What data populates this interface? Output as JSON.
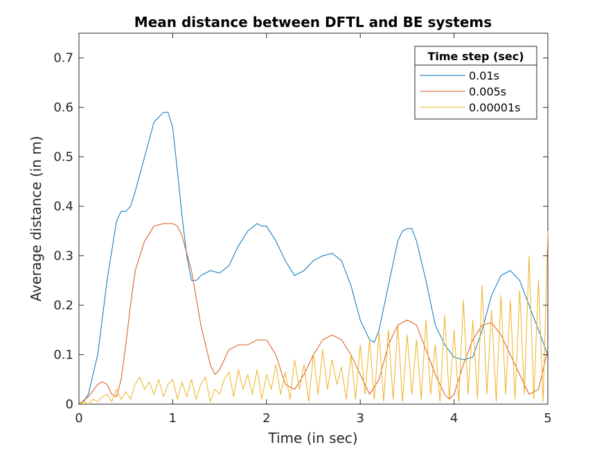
{
  "chart_data": {
    "type": "line",
    "title": "Mean distance between DFTL and BE systems",
    "xlabel": "Time (in sec)",
    "ylabel": "Average distance (in m)",
    "xlim": [
      0,
      5
    ],
    "ylim": [
      0,
      0.75
    ],
    "xticks": [
      0,
      1,
      2,
      3,
      4,
      5
    ],
    "yticks": [
      0,
      0.1,
      0.2,
      0.3,
      0.4,
      0.5,
      0.6,
      0.7
    ],
    "grid": false,
    "legend": {
      "title": "Time step (sec)",
      "placement": "top-right"
    },
    "series": [
      {
        "name": "0.01s",
        "color": "#0072BD",
        "x": [
          0,
          0.05,
          0.1,
          0.2,
          0.3,
          0.4,
          0.45,
          0.5,
          0.55,
          0.6,
          0.7,
          0.8,
          0.85,
          0.9,
          0.95,
          1.0,
          1.05,
          1.1,
          1.15,
          1.2,
          1.25,
          1.3,
          1.4,
          1.5,
          1.6,
          1.7,
          1.8,
          1.9,
          1.95,
          2.0,
          2.1,
          2.2,
          2.3,
          2.4,
          2.5,
          2.6,
          2.7,
          2.8,
          2.9,
          3.0,
          3.1,
          3.15,
          3.2,
          3.3,
          3.4,
          3.45,
          3.5,
          3.55,
          3.6,
          3.7,
          3.8,
          3.9,
          4.0,
          4.1,
          4.2,
          4.3,
          4.4,
          4.5,
          4.6,
          4.7,
          4.8,
          4.9,
          5.0
        ],
        "y": [
          0,
          0.005,
          0.02,
          0.1,
          0.25,
          0.37,
          0.39,
          0.39,
          0.4,
          0.43,
          0.5,
          0.57,
          0.58,
          0.59,
          0.59,
          0.56,
          0.47,
          0.38,
          0.3,
          0.25,
          0.25,
          0.26,
          0.27,
          0.265,
          0.28,
          0.32,
          0.35,
          0.365,
          0.36,
          0.36,
          0.33,
          0.29,
          0.26,
          0.27,
          0.29,
          0.3,
          0.305,
          0.29,
          0.24,
          0.17,
          0.13,
          0.125,
          0.15,
          0.24,
          0.33,
          0.35,
          0.355,
          0.355,
          0.33,
          0.25,
          0.16,
          0.12,
          0.095,
          0.09,
          0.095,
          0.15,
          0.22,
          0.26,
          0.27,
          0.25,
          0.2,
          0.15,
          0.1
        ]
      },
      {
        "name": "0.005s",
        "color": "#D95319",
        "x": [
          0,
          0.1,
          0.2,
          0.25,
          0.3,
          0.35,
          0.4,
          0.45,
          0.5,
          0.55,
          0.6,
          0.7,
          0.8,
          0.9,
          1.0,
          1.05,
          1.1,
          1.2,
          1.3,
          1.4,
          1.45,
          1.5,
          1.6,
          1.7,
          1.8,
          1.9,
          2.0,
          2.1,
          2.2,
          2.3,
          2.4,
          2.5,
          2.6,
          2.7,
          2.8,
          2.9,
          3.0,
          3.1,
          3.2,
          3.3,
          3.4,
          3.5,
          3.6,
          3.7,
          3.8,
          3.9,
          3.95,
          4.0,
          4.1,
          4.2,
          4.3,
          4.4,
          4.5,
          4.6,
          4.7,
          4.8,
          4.9,
          5.0
        ],
        "y": [
          0,
          0.015,
          0.04,
          0.045,
          0.04,
          0.02,
          0.015,
          0.05,
          0.12,
          0.2,
          0.27,
          0.33,
          0.36,
          0.365,
          0.365,
          0.36,
          0.34,
          0.27,
          0.16,
          0.08,
          0.06,
          0.07,
          0.11,
          0.12,
          0.12,
          0.13,
          0.13,
          0.1,
          0.04,
          0.03,
          0.06,
          0.1,
          0.13,
          0.14,
          0.13,
          0.1,
          0.06,
          0.02,
          0.05,
          0.12,
          0.16,
          0.17,
          0.16,
          0.11,
          0.06,
          0.02,
          0.01,
          0.02,
          0.08,
          0.13,
          0.16,
          0.165,
          0.14,
          0.1,
          0.06,
          0.02,
          0.03,
          0.11
        ]
      },
      {
        "name": "0.00001s",
        "color": "#EDB120",
        "x": [
          0,
          0.05,
          0.1,
          0.15,
          0.2,
          0.25,
          0.3,
          0.35,
          0.4,
          0.45,
          0.5,
          0.55,
          0.6,
          0.65,
          0.7,
          0.75,
          0.8,
          0.85,
          0.9,
          0.95,
          1.0,
          1.05,
          1.1,
          1.15,
          1.2,
          1.25,
          1.3,
          1.35,
          1.4,
          1.45,
          1.5,
          1.55,
          1.6,
          1.65,
          1.7,
          1.75,
          1.8,
          1.85,
          1.9,
          1.95,
          2.0,
          2.05,
          2.1,
          2.15,
          2.2,
          2.25,
          2.3,
          2.35,
          2.4,
          2.45,
          2.5,
          2.55,
          2.6,
          2.65,
          2.7,
          2.75,
          2.8,
          2.85,
          2.9,
          2.95,
          3.0,
          3.05,
          3.1,
          3.15,
          3.2,
          3.25,
          3.3,
          3.35,
          3.4,
          3.45,
          3.5,
          3.55,
          3.6,
          3.65,
          3.7,
          3.75,
          3.8,
          3.85,
          3.9,
          3.95,
          4.0,
          4.05,
          4.1,
          4.15,
          4.2,
          4.25,
          4.3,
          4.35,
          4.4,
          4.45,
          4.5,
          4.55,
          4.6,
          4.65,
          4.7,
          4.75,
          4.8,
          4.85,
          4.9,
          4.95,
          5.0
        ],
        "y": [
          0,
          0.005,
          0,
          0.01,
          0.005,
          0.015,
          0.02,
          0.005,
          0.03,
          0.01,
          0.025,
          0.01,
          0.04,
          0.055,
          0.03,
          0.045,
          0.02,
          0.05,
          0.015,
          0.04,
          0.05,
          0.01,
          0.045,
          0.015,
          0.05,
          0.01,
          0.04,
          0.055,
          0.005,
          0.03,
          0.02,
          0.05,
          0.065,
          0.015,
          0.07,
          0.03,
          0.06,
          0.02,
          0.07,
          0.01,
          0.06,
          0.03,
          0.08,
          0.02,
          0.065,
          0.01,
          0.09,
          0.03,
          0.08,
          0.005,
          0.1,
          0.02,
          0.11,
          0.03,
          0.09,
          0.04,
          0.075,
          0.01,
          0.1,
          0.01,
          0.12,
          0.02,
          0.13,
          0.01,
          0.145,
          0.005,
          0.15,
          0.01,
          0.16,
          0.005,
          0.14,
          0.02,
          0.13,
          0.01,
          0.17,
          0.02,
          0.12,
          0.005,
          0.18,
          0.01,
          0.15,
          0.005,
          0.21,
          0.02,
          0.17,
          0.01,
          0.24,
          0.02,
          0.19,
          0.005,
          0.22,
          0.02,
          0.21,
          0.01,
          0.23,
          0.02,
          0.3,
          0.01,
          0.25,
          0.005,
          0.35
        ]
      }
    ]
  }
}
